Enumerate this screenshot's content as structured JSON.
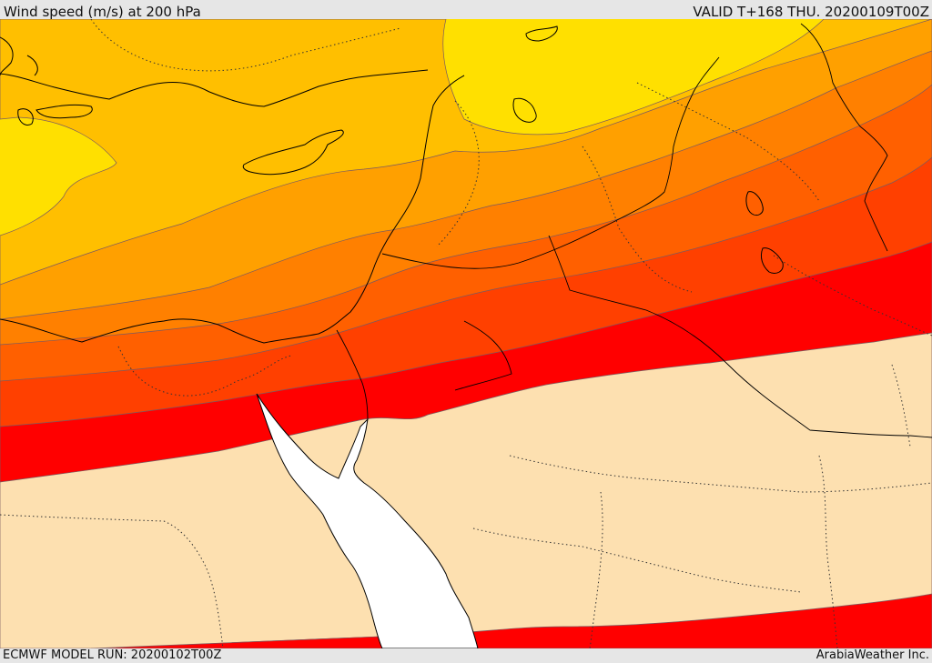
{
  "header": {
    "title": "Wind speed (m/s) at 200 hPa",
    "valid": "VALID T+168 THU. 20200109T00Z"
  },
  "footer": {
    "model_run": "ECMWF MODEL RUN: 20200102T00Z",
    "credit": "ArabiaWeather Inc."
  },
  "colors": {
    "band_yellow": "#ffe000",
    "band_light_orange": "#ffbf00",
    "band_orange": "#ffa000",
    "band_dark_orange": "#ff8000",
    "band_orange_red": "#ff6000",
    "band_red_orange": "#ff4000",
    "band_red": "#ff0000",
    "below_threshold": "#fde0b0",
    "sea": "#ffffff"
  }
}
